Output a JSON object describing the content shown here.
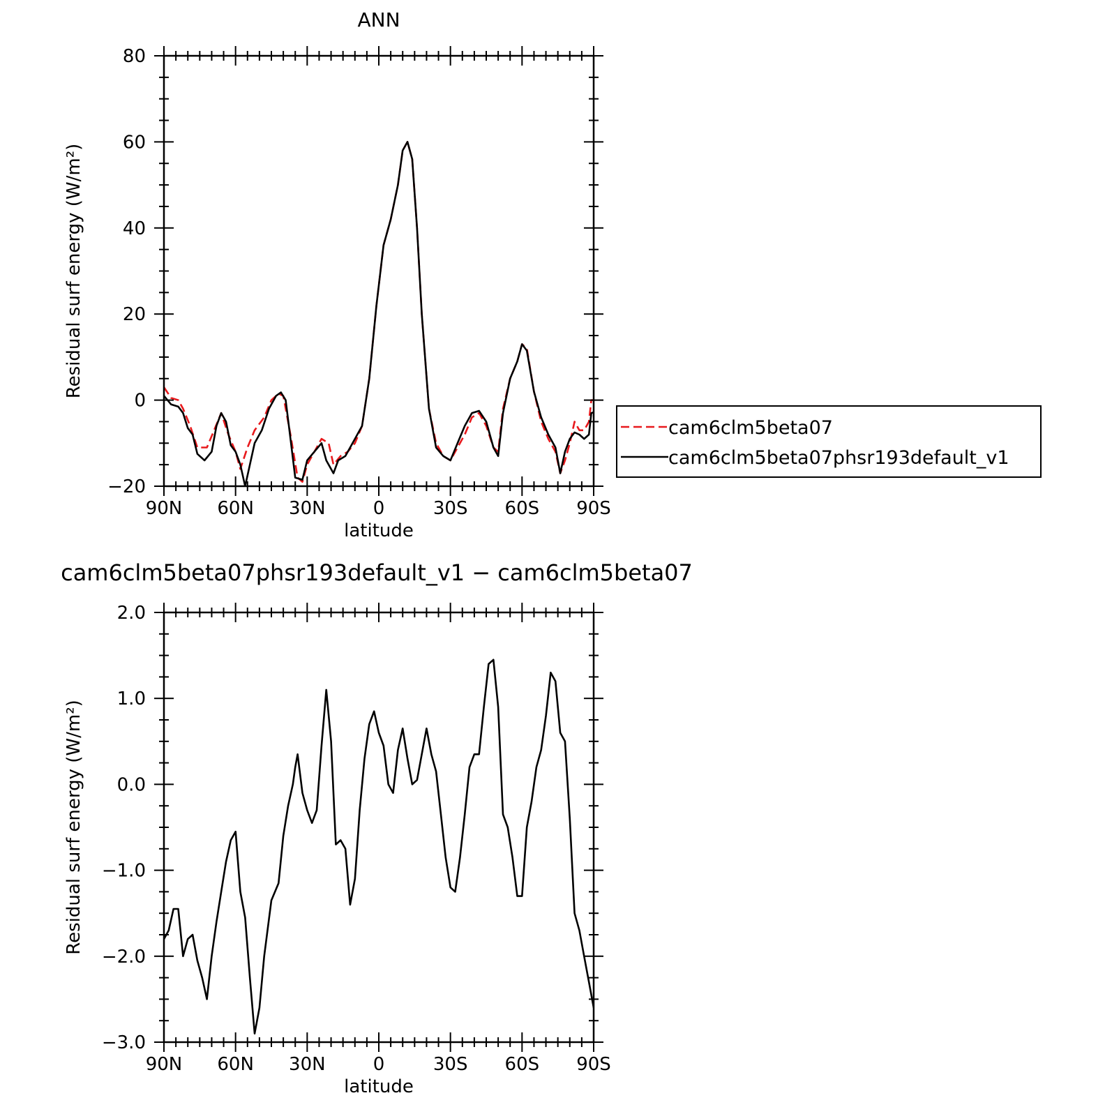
{
  "chart_data": [
    {
      "type": "line",
      "title": "ANN",
      "xlabel": "latitude",
      "ylabel": "Residual surf energy (W/m²)",
      "xlim": [
        90,
        -90
      ],
      "ylim": [
        -20,
        80
      ],
      "x_ticks": [
        90,
        60,
        30,
        0,
        -30,
        -60,
        -90
      ],
      "x_tick_labels": [
        "90N",
        "60N",
        "30N",
        "0",
        "30S",
        "60S",
        "90S"
      ],
      "y_ticks": [
        -20,
        0,
        20,
        40,
        60,
        80
      ],
      "y_tick_labels": [
        "−20",
        "0",
        "20",
        "40",
        "60",
        "80"
      ],
      "legend_position": "right",
      "series": [
        {
          "name": "cam6clm5beta07",
          "color": "#e8191c",
          "dash": "dashed",
          "points": [
            [
              90,
              3
            ],
            [
              87,
              0.5
            ],
            [
              84,
              0
            ],
            [
              82,
              -2
            ],
            [
              79,
              -6
            ],
            [
              76,
              -11
            ],
            [
              72,
              -11
            ],
            [
              69,
              -7
            ],
            [
              66,
              -3
            ],
            [
              63,
              -8
            ],
            [
              60,
              -12
            ],
            [
              58,
              -16
            ],
            [
              55,
              -11
            ],
            [
              52,
              -7
            ],
            [
              48,
              -4
            ],
            [
              45,
              0
            ],
            [
              42,
              1.5
            ],
            [
              40,
              1
            ],
            [
              37,
              -8
            ],
            [
              34,
              -18
            ],
            [
              32,
              -19
            ],
            [
              30,
              -15
            ],
            [
              27,
              -12
            ],
            [
              24,
              -9
            ],
            [
              21,
              -10
            ],
            [
              19,
              -15
            ],
            [
              16,
              -13
            ],
            [
              13,
              -12
            ],
            [
              10,
              -10
            ],
            [
              7,
              -6
            ],
            [
              4,
              5
            ],
            [
              1,
              22
            ],
            [
              -2,
              36
            ],
            [
              -5,
              42
            ],
            [
              -8,
              50
            ],
            [
              -10,
              58
            ],
            [
              -12,
              60
            ],
            [
              -14,
              56
            ],
            [
              -16,
              40
            ],
            [
              -18,
              20
            ],
            [
              -21,
              -2
            ],
            [
              -24,
              -10
            ],
            [
              -27,
              -13
            ],
            [
              -30,
              -14
            ],
            [
              -33,
              -11
            ],
            [
              -36,
              -8
            ],
            [
              -39,
              -4
            ],
            [
              -42,
              -3
            ],
            [
              -45,
              -6
            ],
            [
              -48,
              -11
            ],
            [
              -50,
              -12
            ],
            [
              -52,
              -2
            ],
            [
              -55,
              5
            ],
            [
              -58,
              9
            ],
            [
              -60,
              13
            ],
            [
              -62,
              12
            ],
            [
              -65,
              2
            ],
            [
              -68,
              -5
            ],
            [
              -71,
              -9
            ],
            [
              -74,
              -12
            ],
            [
              -76,
              -17
            ],
            [
              -78,
              -14
            ],
            [
              -80,
              -10
            ],
            [
              -82,
              -5
            ],
            [
              -84,
              -7
            ],
            [
              -86,
              -7
            ],
            [
              -88,
              -5
            ],
            [
              -89,
              0
            ],
            [
              -92,
              0
            ],
            [
              -96,
              0
            ],
            [
              -100,
              0
            ]
          ]
        },
        {
          "name": "cam6clm5beta07phsr193default_v1",
          "color": "#000000",
          "dash": "solid",
          "points": [
            [
              90,
              1
            ],
            [
              87,
              -1
            ],
            [
              84,
              -1.5
            ],
            [
              82,
              -3
            ],
            [
              80,
              -6.5
            ],
            [
              78,
              -8
            ],
            [
              76,
              -12.5
            ],
            [
              73,
              -14
            ],
            [
              70,
              -12
            ],
            [
              68,
              -6
            ],
            [
              66,
              -3
            ],
            [
              64,
              -5
            ],
            [
              62,
              -10.5
            ],
            [
              60,
              -12
            ],
            [
              58,
              -15
            ],
            [
              56,
              -20
            ],
            [
              54,
              -15
            ],
            [
              52,
              -10
            ],
            [
              49,
              -7
            ],
            [
              46,
              -2
            ],
            [
              43,
              1
            ],
            [
              41,
              1.8
            ],
            [
              39,
              0
            ],
            [
              37,
              -9
            ],
            [
              35,
              -18
            ],
            [
              32,
              -18.5
            ],
            [
              30,
              -14
            ],
            [
              27,
              -12
            ],
            [
              24,
              -10
            ],
            [
              22,
              -14
            ],
            [
              19,
              -17
            ],
            [
              17,
              -14
            ],
            [
              14,
              -13
            ],
            [
              11,
              -10
            ],
            [
              7,
              -6
            ],
            [
              4,
              5
            ],
            [
              1,
              22
            ],
            [
              -2,
              36
            ],
            [
              -5,
              42
            ],
            [
              -8,
              50
            ],
            [
              -10,
              58
            ],
            [
              -12,
              60
            ],
            [
              -14,
              56
            ],
            [
              -16,
              40
            ],
            [
              -18,
              20
            ],
            [
              -21,
              -2
            ],
            [
              -24,
              -11
            ],
            [
              -27,
              -13
            ],
            [
              -30,
              -14
            ],
            [
              -33,
              -10
            ],
            [
              -36,
              -6
            ],
            [
              -39,
              -3
            ],
            [
              -42,
              -2.5
            ],
            [
              -45,
              -5
            ],
            [
              -48,
              -11
            ],
            [
              -50,
              -13
            ],
            [
              -52,
              -3
            ],
            [
              -55,
              5
            ],
            [
              -58,
              9
            ],
            [
              -60,
              13
            ],
            [
              -62,
              11.5
            ],
            [
              -65,
              2
            ],
            [
              -68,
              -4
            ],
            [
              -71,
              -8
            ],
            [
              -74,
              -11
            ],
            [
              -76,
              -17
            ],
            [
              -78,
              -12
            ],
            [
              -80,
              -9
            ],
            [
              -82,
              -7.5
            ],
            [
              -84,
              -8
            ],
            [
              -86,
              -9
            ],
            [
              -88,
              -8
            ],
            [
              -89,
              -3
            ],
            [
              -92,
              -2.5
            ],
            [
              -96,
              -2.5
            ],
            [
              -100,
              -2.5
            ]
          ]
        }
      ]
    },
    {
      "type": "line",
      "title": "cam6clm5beta07phsr193default_v1 − cam6clm5beta07",
      "xlabel": "latitude",
      "ylabel": "Residual surf energy (W/m²)",
      "xlim": [
        90,
        -90
      ],
      "ylim": [
        -3.0,
        2.0
      ],
      "x_ticks": [
        90,
        60,
        30,
        0,
        -30,
        -60,
        -90
      ],
      "x_tick_labels": [
        "90N",
        "60N",
        "30N",
        "0",
        "30S",
        "60S",
        "90S"
      ],
      "y_ticks": [
        -3,
        -2,
        -1,
        0,
        1,
        2
      ],
      "y_tick_labels": [
        "−3.0",
        "−2.0",
        "−1.0",
        "0.0",
        "1.0",
        "2.0"
      ],
      "series": [
        {
          "name": "",
          "color": "#000000",
          "dash": "solid",
          "points": [
            [
              90,
              -1.8
            ],
            [
              88,
              -1.7
            ],
            [
              86,
              -1.45
            ],
            [
              84,
              -1.45
            ],
            [
              82,
              -2.0
            ],
            [
              80,
              -1.8
            ],
            [
              78,
              -1.75
            ],
            [
              76,
              -2.05
            ],
            [
              74,
              -2.25
            ],
            [
              72,
              -2.5
            ],
            [
              70,
              -2.0
            ],
            [
              68,
              -1.6
            ],
            [
              66,
              -1.25
            ],
            [
              64,
              -0.9
            ],
            [
              62,
              -0.65
            ],
            [
              60,
              -0.55
            ],
            [
              58,
              -1.25
            ],
            [
              56,
              -1.55
            ],
            [
              54,
              -2.25
            ],
            [
              52,
              -2.9
            ],
            [
              50,
              -2.6
            ],
            [
              48,
              -2.0
            ],
            [
              45,
              -1.35
            ],
            [
              42,
              -1.15
            ],
            [
              40,
              -0.6
            ],
            [
              38,
              -0.25
            ],
            [
              36,
              0.0
            ],
            [
              35,
              0.2
            ],
            [
              34,
              0.35
            ],
            [
              32,
              -0.1
            ],
            [
              30,
              -0.3
            ],
            [
              28,
              -0.45
            ],
            [
              26,
              -0.3
            ],
            [
              24,
              0.45
            ],
            [
              22,
              1.1
            ],
            [
              20,
              0.5
            ],
            [
              18,
              -0.7
            ],
            [
              16,
              -0.65
            ],
            [
              14,
              -0.75
            ],
            [
              12,
              -1.4
            ],
            [
              10,
              -1.1
            ],
            [
              8,
              -0.3
            ],
            [
              6,
              0.3
            ],
            [
              4,
              0.7
            ],
            [
              2,
              0.85
            ],
            [
              0,
              0.6
            ],
            [
              -2,
              0.45
            ],
            [
              -4,
              0.0
            ],
            [
              -6,
              -0.1
            ],
            [
              -8,
              0.4
            ],
            [
              -10,
              0.65
            ],
            [
              -12,
              0.3
            ],
            [
              -14,
              0.0
            ],
            [
              -16,
              0.05
            ],
            [
              -18,
              0.35
            ],
            [
              -20,
              0.65
            ],
            [
              -22,
              0.35
            ],
            [
              -24,
              0.15
            ],
            [
              -26,
              -0.35
            ],
            [
              -28,
              -0.85
            ],
            [
              -30,
              -1.2
            ],
            [
              -32,
              -1.25
            ],
            [
              -34,
              -0.85
            ],
            [
              -36,
              -0.35
            ],
            [
              -38,
              0.2
            ],
            [
              -40,
              0.35
            ],
            [
              -42,
              0.35
            ],
            [
              -44,
              0.9
            ],
            [
              -46,
              1.4
            ],
            [
              -48,
              1.45
            ],
            [
              -50,
              0.9
            ],
            [
              -52,
              -0.35
            ],
            [
              -54,
              -0.5
            ],
            [
              -56,
              -0.85
            ],
            [
              -58,
              -1.3
            ],
            [
              -60,
              -1.3
            ],
            [
              -62,
              -0.5
            ],
            [
              -64,
              -0.2
            ],
            [
              -66,
              0.2
            ],
            [
              -68,
              0.4
            ],
            [
              -70,
              0.8
            ],
            [
              -72,
              1.3
            ],
            [
              -74,
              1.2
            ],
            [
              -76,
              0.6
            ],
            [
              -78,
              0.5
            ],
            [
              -80,
              -0.4
            ],
            [
              -82,
              -1.5
            ],
            [
              -84,
              -1.7
            ],
            [
              -86,
              -2.0
            ],
            [
              -88,
              -2.3
            ],
            [
              -90,
              -2.6
            ],
            [
              -92,
              -2.35
            ],
            [
              -94,
              -2.45
            ],
            [
              -96,
              -2.6
            ],
            [
              -98,
              -2.75
            ],
            [
              -100,
              -2.9
            ],
            [
              -102,
              -2.85
            ]
          ]
        }
      ]
    }
  ]
}
